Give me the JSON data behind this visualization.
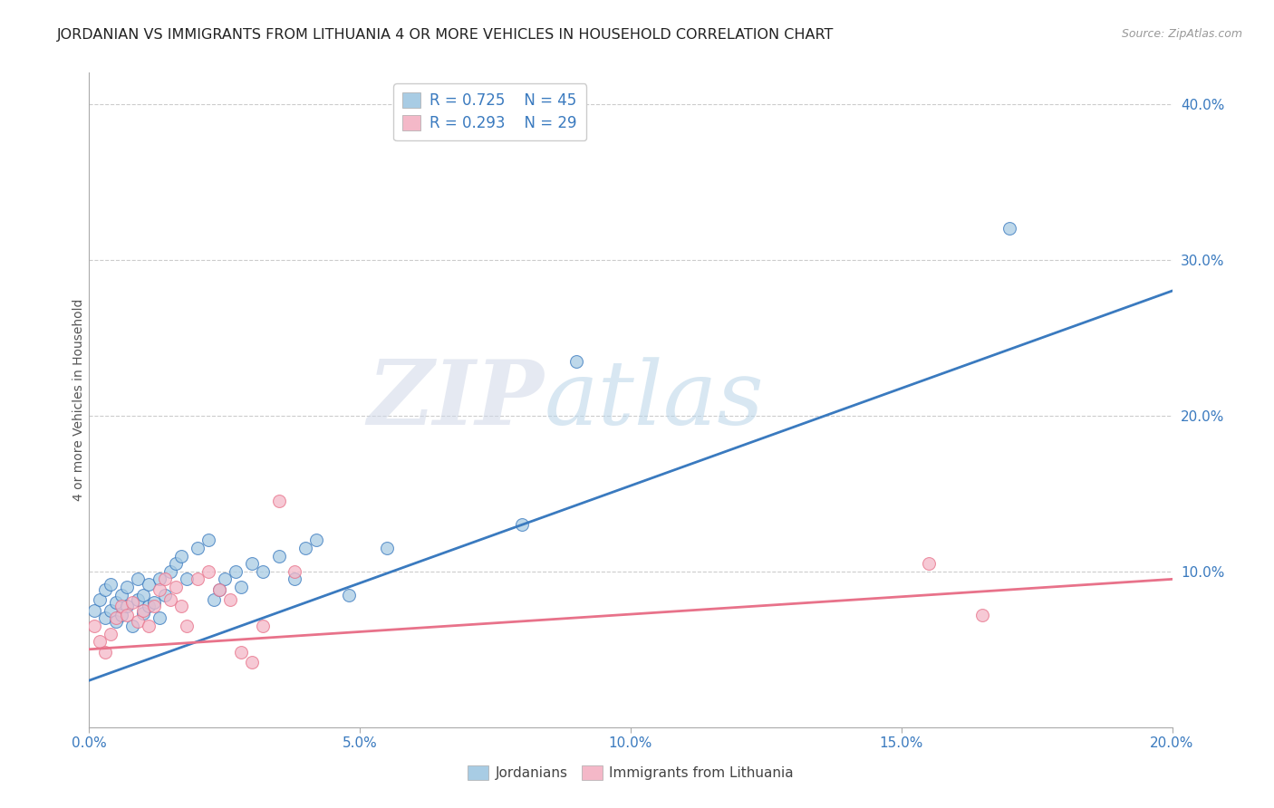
{
  "title": "JORDANIAN VS IMMIGRANTS FROM LITHUANIA 4 OR MORE VEHICLES IN HOUSEHOLD CORRELATION CHART",
  "source": "Source: ZipAtlas.com",
  "ylabel": "4 or more Vehicles in Household",
  "xlabel_blue": "Jordanians",
  "xlabel_pink": "Immigrants from Lithuania",
  "watermark_zip": "ZIP",
  "watermark_atlas": "atlas",
  "R_blue": 0.725,
  "N_blue": 45,
  "R_pink": 0.293,
  "N_pink": 29,
  "xmin": 0.0,
  "xmax": 0.2,
  "ymin": 0.0,
  "ymax": 0.42,
  "yticks": [
    0.1,
    0.2,
    0.3,
    0.4
  ],
  "xticks": [
    0.0,
    0.05,
    0.1,
    0.15,
    0.2
  ],
  "color_blue": "#a8cce4",
  "color_pink": "#f4b8c8",
  "line_blue": "#3a7abf",
  "line_pink": "#e8728a",
  "blue_x": [
    0.001,
    0.002,
    0.003,
    0.003,
    0.004,
    0.004,
    0.005,
    0.005,
    0.006,
    0.006,
    0.007,
    0.007,
    0.008,
    0.009,
    0.009,
    0.01,
    0.01,
    0.011,
    0.011,
    0.012,
    0.013,
    0.013,
    0.014,
    0.015,
    0.016,
    0.017,
    0.018,
    0.02,
    0.022,
    0.023,
    0.024,
    0.025,
    0.027,
    0.028,
    0.03,
    0.032,
    0.035,
    0.038,
    0.04,
    0.042,
    0.048,
    0.055,
    0.08,
    0.17,
    0.09
  ],
  "blue_y": [
    0.075,
    0.082,
    0.07,
    0.088,
    0.075,
    0.092,
    0.08,
    0.068,
    0.085,
    0.072,
    0.078,
    0.09,
    0.065,
    0.082,
    0.095,
    0.073,
    0.085,
    0.092,
    0.078,
    0.08,
    0.095,
    0.07,
    0.085,
    0.1,
    0.105,
    0.11,
    0.095,
    0.115,
    0.12,
    0.082,
    0.088,
    0.095,
    0.1,
    0.09,
    0.105,
    0.1,
    0.11,
    0.095,
    0.115,
    0.12,
    0.085,
    0.115,
    0.13,
    0.32,
    0.235
  ],
  "pink_x": [
    0.001,
    0.002,
    0.003,
    0.004,
    0.005,
    0.006,
    0.007,
    0.008,
    0.009,
    0.01,
    0.011,
    0.012,
    0.013,
    0.014,
    0.015,
    0.016,
    0.017,
    0.018,
    0.02,
    0.022,
    0.024,
    0.026,
    0.028,
    0.03,
    0.032,
    0.035,
    0.038,
    0.155,
    0.165
  ],
  "pink_y": [
    0.065,
    0.055,
    0.048,
    0.06,
    0.07,
    0.078,
    0.072,
    0.08,
    0.068,
    0.075,
    0.065,
    0.078,
    0.088,
    0.095,
    0.082,
    0.09,
    0.078,
    0.065,
    0.095,
    0.1,
    0.088,
    0.082,
    0.048,
    0.042,
    0.065,
    0.145,
    0.1,
    0.105,
    0.072
  ],
  "grid_color": "#cccccc",
  "bg_color": "#ffffff",
  "title_fontsize": 11.5,
  "label_fontsize": 10,
  "tick_fontsize": 11
}
